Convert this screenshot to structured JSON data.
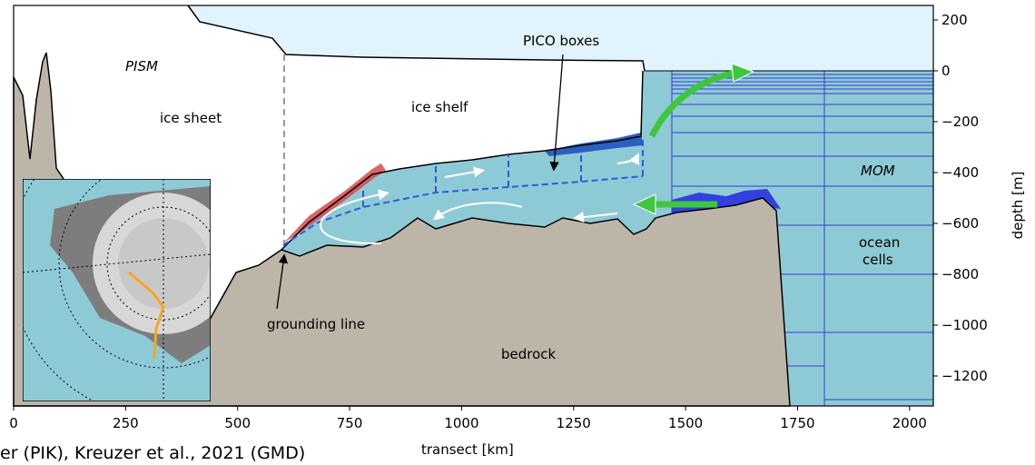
{
  "axes": {
    "xlabel": "transect [km]",
    "ylabel": "depth [m]",
    "xlim": [
      0,
      2053
    ],
    "ylim": [
      -1318,
      257
    ],
    "xticks": [
      0,
      250,
      500,
      750,
      1000,
      1250,
      1500,
      1750,
      2000
    ],
    "yticks": [
      200,
      0,
      {
        "value": -200,
        "label": "−200"
      },
      {
        "value": -400,
        "label": "−400"
      },
      {
        "value": -600,
        "label": "−600"
      },
      {
        "value": -800,
        "label": "−800"
      },
      {
        "value": -1000,
        "label": "−1000"
      },
      {
        "value": -1200,
        "label": "−1200"
      }
    ]
  },
  "labels": {
    "pism": "PISM",
    "ice_sheet": "ice sheet",
    "ice_shelf": "ice shelf",
    "pico_boxes": "PICO boxes",
    "mom": "MOM",
    "ocean": "ocean",
    "cells": "cells",
    "grounding_line": "grounding line",
    "bedrock": "bedrock"
  },
  "caption": "er (PIK), Kreuzer et al., 2021 (GMD)"
}
